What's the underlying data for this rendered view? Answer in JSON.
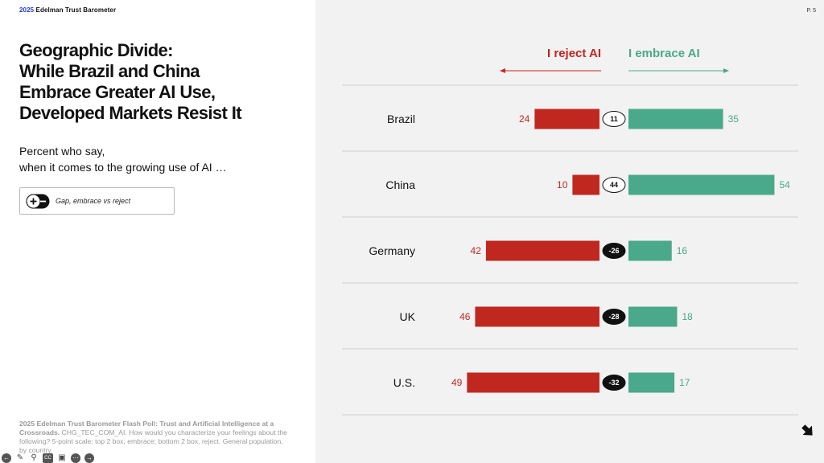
{
  "header": {
    "brand_year": "2025",
    "brand_name": "Edelman Trust Barometer",
    "page": "P. 5"
  },
  "title": "Geographic Divide:\nWhile Brazil and China\nEmbrace Greater AI Use,\nDeveloped Markets Resist It",
  "subtitle": "Percent who say,\nwhen it comes to the growing use of AI …",
  "legend": {
    "label": "Gap, embrace vs reject",
    "icon": "plus-minus-icon"
  },
  "source": {
    "bold": "2025 Edelman Trust Barometer Flash Poll: Trust and Artificial Intelligence at a Crossroads.",
    "text": " CHG_TEC_COM_AI. How would you characterize your feelings about the following? 5-point scale; top 2 box, embrace; bottom 2 box, reject. General population, by country."
  },
  "colors": {
    "reject": "#c0281f",
    "embrace": "#4aa98a",
    "gap_negative": "#111111",
    "gap_positive": "#ffffff"
  },
  "chart_data": {
    "type": "bar",
    "orientation": "horizontal-diverging",
    "series": [
      {
        "name": "I reject AI",
        "values": [
          24,
          10,
          42,
          46,
          49
        ]
      },
      {
        "name": "I embrace AI",
        "values": [
          35,
          54,
          16,
          18,
          17
        ]
      }
    ],
    "categories": [
      "Brazil",
      "China",
      "Germany",
      "UK",
      "U.S."
    ],
    "gap": [
      "11",
      "44",
      "-26",
      "-28",
      "-32"
    ],
    "title": "",
    "xlabel": "",
    "ylabel": "",
    "legend_position": "top",
    "grid": false
  }
}
